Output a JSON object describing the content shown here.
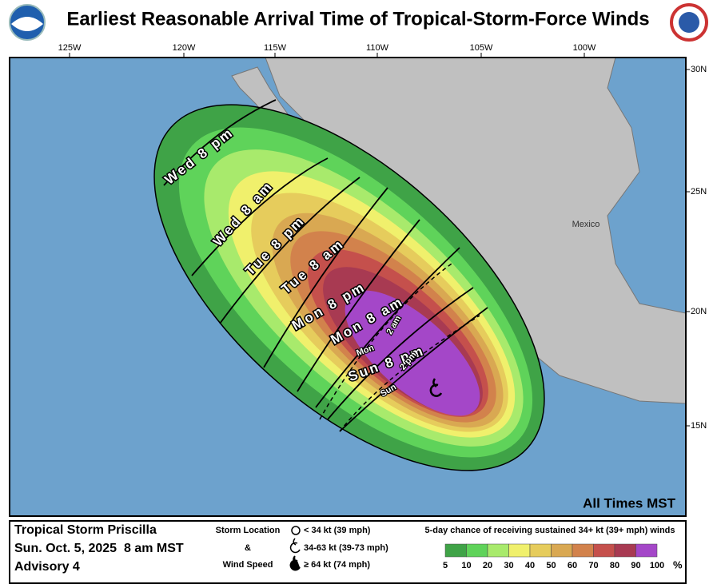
{
  "header": {
    "title": "Earliest Reasonable Arrival Time of Tropical-Storm-Force Winds"
  },
  "map": {
    "lon_labels": [
      "125W",
      "120W",
      "115W",
      "110W",
      "105W",
      "100W"
    ],
    "lat_labels": [
      "30N",
      "25N",
      "20N",
      "15N"
    ],
    "country_label": "Mexico",
    "arrival_labels": [
      "Wed 8 pm",
      "Wed 8 am",
      "Tue 8 pm",
      "Tue 8 am",
      "Mon 8 pm",
      "Mon 8 am",
      "2 am",
      "Mon",
      "Sun 8 pm",
      "2 pm",
      "Sun"
    ],
    "note": "All Times MST"
  },
  "footer": {
    "storm_name": "Tropical Storm Priscilla",
    "datetime": "Sun. Oct. 5, 2025  8 am MST",
    "advisory": "Advisory 4",
    "key_titles": [
      "Storm Location",
      "&",
      "Wind Speed"
    ],
    "key_items": [
      "< 34 kt (39 mph)",
      "34-63 kt (39-73 mph)",
      "≥ 64 kt (74 mph)"
    ],
    "legend_title": "5-day chance of receiving sustained 34+ kt (39+ mph) winds",
    "legend_labels": [
      5,
      10,
      20,
      30,
      40,
      50,
      60,
      70,
      80,
      90,
      100
    ],
    "legend_unit": "%",
    "legend_colors": [
      "#3fa347",
      "#5fd35a",
      "#a8ea6c",
      "#f0f06c",
      "#e6cc5c",
      "#d9a852",
      "#d2824c",
      "#c5504c",
      "#a83a52",
      "#a447c8"
    ]
  }
}
